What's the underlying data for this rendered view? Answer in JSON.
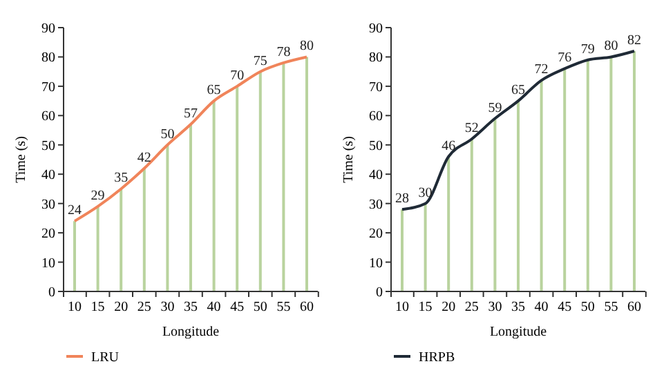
{
  "chart_data": [
    {
      "type": "line",
      "categories": [
        "10",
        "15",
        "20",
        "25",
        "30",
        "35",
        "40",
        "45",
        "50",
        "55",
        "60"
      ],
      "xlabel": "Longitude",
      "ylabel": "Time (s)",
      "ylim": [
        0,
        90
      ],
      "yticks": [
        0,
        10,
        20,
        30,
        40,
        50,
        60,
        70,
        80,
        90
      ],
      "legend": "bottom left",
      "series": [
        {
          "type": "bar",
          "color": "#b9d39e",
          "values": [
            24,
            29,
            35,
            42,
            50,
            57,
            65,
            70,
            75,
            78,
            80
          ]
        },
        {
          "name": "LRU",
          "color": "#f0845a",
          "values": [
            24,
            29,
            35,
            42,
            50,
            57,
            65,
            70,
            75,
            78,
            80
          ],
          "value_labels": [
            "24",
            "29",
            "35",
            "42",
            "50",
            "57",
            "65",
            "70",
            "75",
            "78",
            "80"
          ]
        }
      ]
    },
    {
      "type": "line",
      "categories": [
        "10",
        "15",
        "20",
        "25",
        "30",
        "35",
        "40",
        "45",
        "50",
        "55",
        "60"
      ],
      "xlabel": "Longitude",
      "ylabel": "Time (s)",
      "ylim": [
        0,
        90
      ],
      "yticks": [
        0,
        10,
        20,
        30,
        40,
        50,
        60,
        70,
        80,
        90
      ],
      "legend": "bottom left",
      "series": [
        {
          "type": "bar",
          "color": "#b9d39e",
          "values": [
            28,
            30,
            46,
            52,
            59,
            65,
            72,
            76,
            79,
            80,
            82
          ]
        },
        {
          "name": "HRPB",
          "color": "#1f2a36",
          "values": [
            28,
            30,
            46,
            52,
            59,
            65,
            72,
            76,
            79,
            80,
            82
          ],
          "value_labels": [
            "28",
            "30",
            "46",
            "52",
            "59",
            "65",
            "72",
            "76",
            "79",
            "80",
            "82"
          ]
        }
      ]
    }
  ]
}
